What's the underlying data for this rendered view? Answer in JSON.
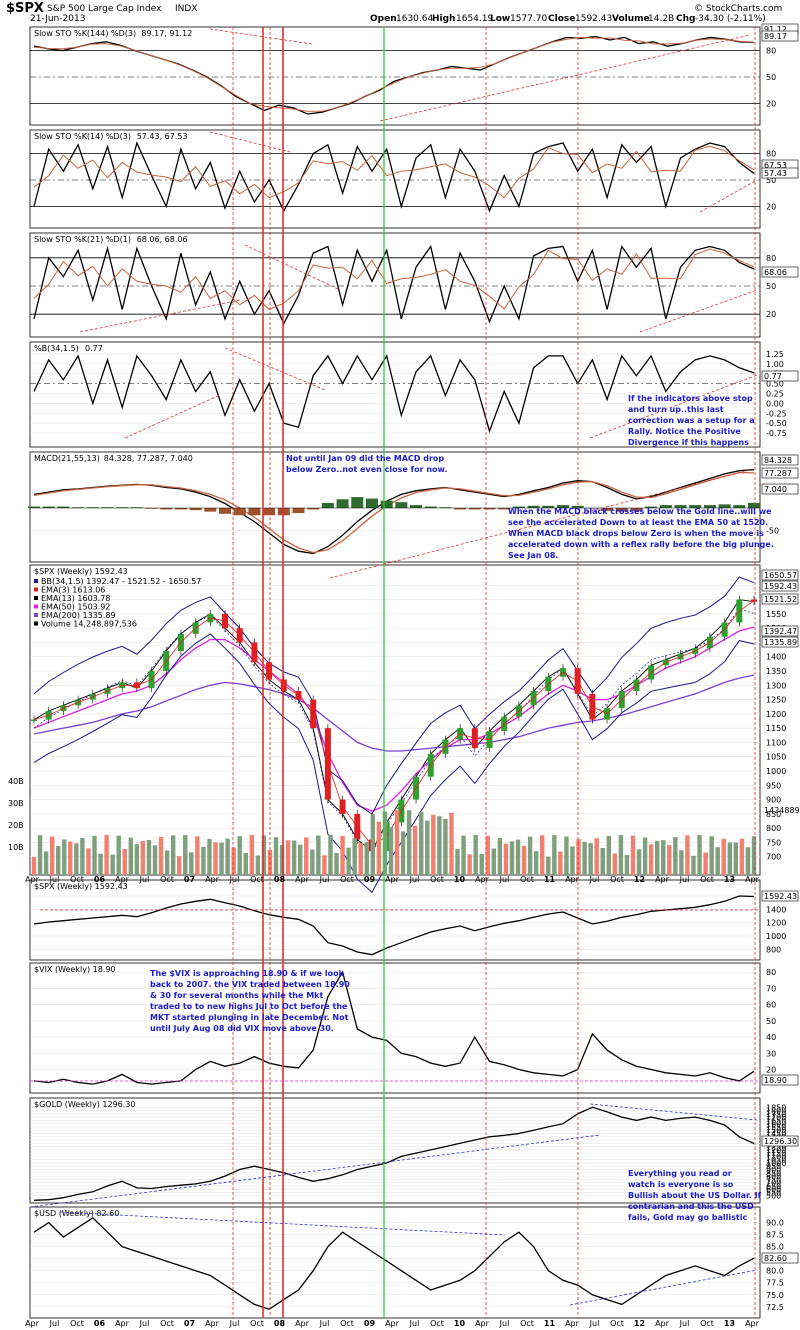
{
  "header": {
    "symbol": "$SPX",
    "name": "S&P 500 Large Cap Index",
    "exchange": "INDX",
    "date": "21-Jun-2013",
    "open_label": "Open",
    "open": "1630.64",
    "high_label": "High",
    "high": "1654.19",
    "low_label": "Low",
    "low": "1577.70",
    "close_label": "Close",
    "close": "1592.43",
    "volume_label": "Volume",
    "volume": "14.2B",
    "chg_label": "Chg",
    "chg": "-34.30 (-2.11%)",
    "watermark": "© StockCharts.com"
  },
  "colors": {
    "price_line": "#000000",
    "signal_line": "#c8643c",
    "annotation": "#1c1ccf",
    "red_vline": "#e03030",
    "green_vline": "#3cc83c",
    "trend_red": "#e03030",
    "trend_blue": "#3030d0",
    "ema_red": "#e02020",
    "ema_magenta": "#e020e0",
    "ema_purple": "#7b3fd0",
    "bb_navy": "#1a1a8a",
    "up_candle": "#2ea02e",
    "down_candle": "#e02020",
    "vol_up": "#7f9f7f",
    "vol_down": "#f08070",
    "hist_up": "#2e6b2e",
    "hist_down": "#a0522d"
  },
  "x_axis": {
    "labels": [
      "Apr",
      "Jul",
      "Oct",
      "06",
      "Apr",
      "Jul",
      "Oct",
      "07",
      "Apr",
      "Jul",
      "Oct",
      "08",
      "Apr",
      "Jul",
      "Oct",
      "09",
      "Apr",
      "Jul",
      "Oct",
      "10",
      "Apr",
      "Jul",
      "Oct",
      "11",
      "Apr",
      "Jul",
      "Oct",
      "12",
      "Apr",
      "Jul",
      "Oct",
      "13",
      "Apr"
    ],
    "year_labels": [
      "06",
      "07",
      "08",
      "09",
      "10",
      "11",
      "12",
      "13"
    ]
  },
  "annotations": {
    "macd_note": [
      "Not until Jan 09 did the MACD drop",
      "below Zero..not even close for now."
    ],
    "pctb_note": [
      "If the indicators above stop",
      "and turn up..this last",
      "correction was a setup for a",
      "Rally. Notice the Positive",
      "Divergence if this happens"
    ],
    "ema_note": [
      "When the MACD black crosses below the Gold line..will we",
      "see the accelerated Down to at least the EMA 50 at 1520.",
      "When MACD black drops below Zero is when the move is",
      "accelerated down with a reflex rally before the big plunge.",
      "See Jan 08."
    ],
    "vix_note": [
      "The $VIX is approaching 18.90 & if we look",
      "back to 2007. the VIX traded between 18.90",
      "& 30 for several months while the Mkt",
      "traded to to new highs Jul to Oct before the",
      "MKT started plunging in late December. Not",
      "until July Aug 08 did VIX move above 30."
    ],
    "gold_note": [
      "Everything you read or",
      "watch is everyone is so",
      "Bullish about the US Dollar. If",
      "contrarian and this the USD",
      "fails, Gold may go ballistic"
    ]
  },
  "chart_data": [
    {
      "id": "sto144",
      "type": "line",
      "title": "Slow STO %K(144) %D(3)",
      "k": "89.17",
      "d": "91.12",
      "ylim": [
        0,
        100
      ],
      "yticks": [
        20,
        50,
        80
      ],
      "tags": [
        "91.12",
        "89.17"
      ],
      "series": [
        {
          "name": "%K(144)",
          "values": [
            85,
            82,
            80,
            84,
            88,
            90,
            86,
            80,
            75,
            70,
            65,
            58,
            50,
            40,
            28,
            20,
            12,
            18,
            15,
            8,
            10,
            15,
            20,
            28,
            35,
            45,
            50,
            55,
            58,
            62,
            60,
            58,
            65,
            72,
            78,
            84,
            90,
            95,
            94,
            96,
            92,
            95,
            88,
            90,
            85,
            88,
            92,
            95,
            93,
            90,
            89.17
          ]
        }
      ]
    },
    {
      "id": "sto14",
      "type": "line",
      "title": "Slow STO %K(14) %D(3)",
      "k": "57.43",
      "d": "67.53",
      "ylim": [
        0,
        100
      ],
      "yticks": [
        20,
        50,
        80
      ],
      "tags": [
        "67.53",
        "57.43"
      ],
      "series": [
        {
          "name": "%K(14)",
          "values": [
            20,
            85,
            60,
            90,
            40,
            88,
            30,
            92,
            55,
            20,
            85,
            40,
            70,
            18,
            60,
            25,
            50,
            15,
            45,
            80,
            90,
            35,
            88,
            60,
            85,
            20,
            75,
            90,
            30,
            85,
            60,
            15,
            55,
            20,
            80,
            88,
            92,
            60,
            85,
            30,
            90,
            70,
            88,
            20,
            75,
            85,
            92,
            88,
            70,
            57.43
          ]
        }
      ]
    },
    {
      "id": "sto21",
      "type": "line",
      "title": "Slow STO %K(21) %D(1)",
      "k": "68.06",
      "d": "68.06",
      "ylim": [
        0,
        100
      ],
      "yticks": [
        20,
        50,
        80
      ],
      "tags": [
        "68.06"
      ],
      "series": [
        {
          "name": "%K(21)",
          "values": [
            15,
            80,
            60,
            88,
            35,
            90,
            25,
            90,
            50,
            15,
            85,
            30,
            65,
            15,
            55,
            20,
            45,
            10,
            40,
            85,
            92,
            30,
            88,
            55,
            88,
            15,
            70,
            92,
            25,
            85,
            55,
            12,
            50,
            15,
            82,
            90,
            92,
            55,
            88,
            25,
            92,
            70,
            90,
            15,
            70,
            88,
            92,
            88,
            75,
            68.06
          ]
        }
      ]
    },
    {
      "id": "pctb",
      "type": "line",
      "title": "%B(34,1.5)",
      "value": "0.77",
      "ylim": [
        -1.0,
        1.4
      ],
      "yticks": [
        -0.75,
        -0.5,
        -0.25,
        0.0,
        0.25,
        0.5,
        0.75,
        1.0,
        1.25
      ],
      "tags": [
        "0.77"
      ],
      "series": [
        {
          "name": "%B",
          "values": [
            0.3,
            1.1,
            0.6,
            1.2,
            0.0,
            1.1,
            -0.1,
            1.2,
            0.7,
            0.1,
            1.1,
            0.3,
            0.8,
            -0.3,
            0.6,
            -0.2,
            0.5,
            -0.5,
            -0.6,
            0.7,
            1.2,
            0.5,
            1.2,
            0.6,
            1.2,
            -0.3,
            0.8,
            1.2,
            0.2,
            1.1,
            0.6,
            -0.7,
            0.3,
            -0.5,
            0.9,
            1.2,
            1.2,
            0.5,
            1.1,
            0.1,
            1.2,
            0.7,
            1.2,
            0.3,
            0.8,
            1.1,
            1.2,
            1.1,
            0.9,
            0.77
          ]
        }
      ]
    },
    {
      "id": "macd",
      "type": "line",
      "title": "MACD(21,55,13)",
      "macd": "84.328",
      "signal": "77.287",
      "hist": "7.040",
      "ylim": [
        -110,
        110
      ],
      "yticks": [
        -50
      ],
      "tags": [
        "84.328",
        "77.287",
        "7.040"
      ],
      "series": [
        {
          "name": "MACD",
          "values": [
            30,
            35,
            40,
            42,
            45,
            48,
            50,
            52,
            50,
            45,
            42,
            35,
            25,
            10,
            -10,
            -30,
            -55,
            -80,
            -95,
            -100,
            -85,
            -60,
            -30,
            -5,
            15,
            30,
            38,
            42,
            45,
            40,
            35,
            30,
            25,
            30,
            38,
            45,
            55,
            60,
            58,
            45,
            30,
            20,
            25,
            35,
            45,
            55,
            65,
            75,
            82,
            84.328
          ]
        },
        {
          "name": "Signal",
          "values": [
            28,
            33,
            38,
            41,
            44,
            47,
            49,
            51,
            51,
            47,
            44,
            38,
            30,
            18,
            0,
            -20,
            -45,
            -70,
            -88,
            -98,
            -92,
            -72,
            -45,
            -18,
            5,
            22,
            34,
            40,
            44,
            42,
            37,
            32,
            27,
            28,
            35,
            42,
            51,
            57,
            58,
            49,
            35,
            24,
            23,
            31,
            41,
            51,
            61,
            70,
            78,
            77.287
          ]
        }
      ]
    },
    {
      "id": "spx_main",
      "type": "line",
      "title": "$SPX (Weekly) 1592.43",
      "legend": [
        "BB(34,1.5) 1392.47 - 1521.52 - 1650.57",
        "EMA(3) 1613.06",
        "EMA(13) 1603.78",
        "EMA(50) 1503.92",
        "EMA(200) 1335.89",
        "Volume 14,248,897,536"
      ],
      "ylim": [
        650,
        1700
      ],
      "yticks": [
        700,
        750,
        800,
        850,
        900,
        950,
        1000,
        1050,
        1100,
        1150,
        1200,
        1250,
        1300,
        1350,
        1400,
        1450,
        1500,
        1550,
        1600,
        1650
      ],
      "tags": [
        "1650.57",
        "1592.43",
        "1521.52",
        "1392.47",
        "1335.89"
      ],
      "volume_ticks": [
        "10B",
        "20B",
        "30B",
        "40B"
      ],
      "volume_tag": "14248897536",
      "series": [
        {
          "name": "Close",
          "values": [
            1180,
            1210,
            1230,
            1250,
            1270,
            1290,
            1310,
            1290,
            1350,
            1420,
            1480,
            1520,
            1550,
            1500,
            1450,
            1380,
            1320,
            1280,
            1250,
            1150,
            900,
            850,
            760,
            720,
            820,
            900,
            980,
            1060,
            1110,
            1150,
            1080,
            1140,
            1190,
            1230,
            1280,
            1330,
            1360,
            1270,
            1180,
            1220,
            1280,
            1320,
            1370,
            1390,
            1410,
            1430,
            1470,
            1520,
            1600,
            1592.43
          ]
        },
        {
          "name": "EMA(200)",
          "values": [
            1130,
            1140,
            1150,
            1160,
            1170,
            1185,
            1200,
            1210,
            1225,
            1245,
            1265,
            1285,
            1300,
            1310,
            1305,
            1295,
            1285,
            1270,
            1250,
            1220,
            1180,
            1140,
            1100,
            1080,
            1070,
            1070,
            1075,
            1080,
            1085,
            1090,
            1095,
            1100,
            1110,
            1120,
            1135,
            1150,
            1160,
            1170,
            1175,
            1185,
            1195,
            1210,
            1225,
            1240,
            1255,
            1270,
            1290,
            1310,
            1325,
            1335.89
          ]
        },
        {
          "name": "EMA(50)",
          "values": [
            1150,
            1170,
            1190,
            1210,
            1230,
            1250,
            1270,
            1280,
            1300,
            1340,
            1390,
            1430,
            1460,
            1460,
            1430,
            1390,
            1350,
            1310,
            1270,
            1200,
            1060,
            960,
            880,
            860,
            880,
            930,
            990,
            1040,
            1080,
            1110,
            1110,
            1130,
            1160,
            1190,
            1230,
            1270,
            1300,
            1280,
            1250,
            1250,
            1270,
            1300,
            1330,
            1360,
            1380,
            1400,
            1430,
            1460,
            1490,
            1503.92
          ]
        }
      ]
    },
    {
      "id": "spx_weekly",
      "type": "line",
      "title": "$SPX (Weekly) 1592.43",
      "ylim": [
        700,
        1750
      ],
      "yticks": [
        800,
        1000,
        1200,
        1400,
        1600
      ],
      "tags": [
        "1592.43"
      ],
      "series": [
        {
          "name": "Close",
          "values": [
            1180,
            1210,
            1230,
            1250,
            1270,
            1290,
            1310,
            1290,
            1350,
            1420,
            1480,
            1520,
            1550,
            1500,
            1450,
            1380,
            1320,
            1280,
            1250,
            1150,
            900,
            850,
            760,
            720,
            820,
            900,
            980,
            1060,
            1110,
            1150,
            1080,
            1140,
            1190,
            1230,
            1280,
            1330,
            1360,
            1270,
            1180,
            1220,
            1280,
            1320,
            1370,
            1390,
            1410,
            1430,
            1470,
            1520,
            1600,
            1592.43
          ]
        }
      ]
    },
    {
      "id": "vix",
      "type": "line",
      "title": "$VIX (Weekly) 18.90",
      "ylim": [
        8,
        82
      ],
      "yticks": [
        20,
        30,
        40,
        50,
        60,
        70,
        80
      ],
      "tags": [
        "18.90"
      ],
      "series": [
        {
          "name": "VIX",
          "values": [
            13,
            12,
            14,
            12,
            11,
            13,
            17,
            12,
            11,
            12,
            13,
            20,
            25,
            22,
            24,
            28,
            24,
            22,
            21,
            32,
            65,
            80,
            45,
            40,
            38,
            30,
            28,
            24,
            22,
            24,
            40,
            25,
            23,
            20,
            18,
            17,
            16,
            20,
            42,
            32,
            26,
            22,
            20,
            18,
            17,
            16,
            18,
            15,
            13,
            18.9
          ]
        }
      ]
    },
    {
      "id": "gold",
      "type": "line",
      "title": "$GOLD (Weekly) 1296.30",
      "ylim": [
        450,
        1900
      ],
      "yticks": [
        500,
        550,
        600,
        650,
        700,
        750,
        800,
        850,
        900,
        950,
        1000,
        1050,
        1100,
        1150,
        1200,
        1250,
        1300,
        1350,
        1400,
        1450,
        1500,
        1550,
        1600,
        1650,
        1700,
        1750,
        1800,
        1850
      ],
      "tags": [
        "1296.30"
      ],
      "series": [
        {
          "name": "Gold",
          "values": [
            430,
            440,
            470,
            520,
            560,
            650,
            720,
            620,
            610,
            640,
            660,
            680,
            720,
            800,
            900,
            950,
            900,
            850,
            780,
            720,
            760,
            820,
            900,
            950,
            1000,
            1100,
            1150,
            1200,
            1250,
            1300,
            1350,
            1400,
            1420,
            1450,
            1500,
            1550,
            1600,
            1750,
            1850,
            1780,
            1700,
            1650,
            1700,
            1650,
            1680,
            1700,
            1650,
            1580,
            1400,
            1296.3
          ]
        }
      ]
    },
    {
      "id": "usd",
      "type": "line",
      "title": "$USD (Weekly) 82.60",
      "ylim": [
        71,
        92
      ],
      "yticks": [
        72.5,
        75.0,
        77.5,
        80.0,
        82.5,
        85.0,
        87.5,
        90.0
      ],
      "tags": [
        "82.60"
      ],
      "series": [
        {
          "name": "USD",
          "values": [
            88,
            90,
            87,
            89,
            91,
            88,
            85,
            84,
            83,
            82,
            81,
            80,
            79,
            77,
            75,
            73,
            72,
            74,
            76,
            80,
            85,
            88,
            86,
            84,
            82,
            80,
            78,
            76,
            77,
            78,
            80,
            83,
            86,
            88,
            85,
            80,
            78,
            77,
            75,
            74,
            73,
            75,
            77,
            79,
            80,
            81,
            80,
            79,
            81,
            82.6
          ]
        }
      ]
    }
  ]
}
